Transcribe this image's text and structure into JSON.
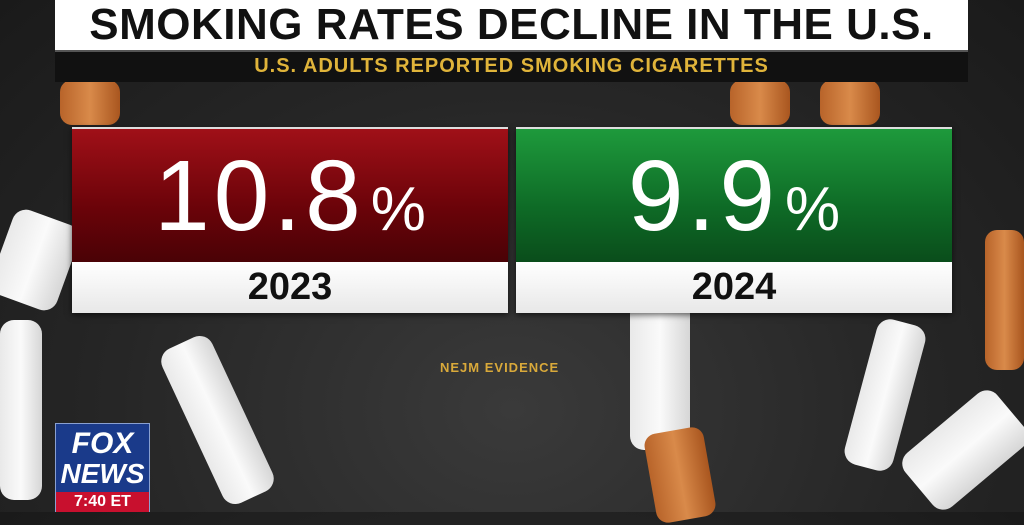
{
  "header": {
    "title": "SMOKING RATES DECLINE IN THE U.S.",
    "subtitle": "U.S. ADULTS REPORTED SMOKING CIGARETTES"
  },
  "cards": [
    {
      "number": "10.8",
      "unit": "%",
      "year": "2023"
    },
    {
      "number": "9.9",
      "unit": "%",
      "year": "2024"
    }
  ],
  "source": "NEJM EVIDENCE",
  "logo": {
    "line1": "FOX",
    "line2": "NEWS",
    "time": "7:40 ET"
  }
}
